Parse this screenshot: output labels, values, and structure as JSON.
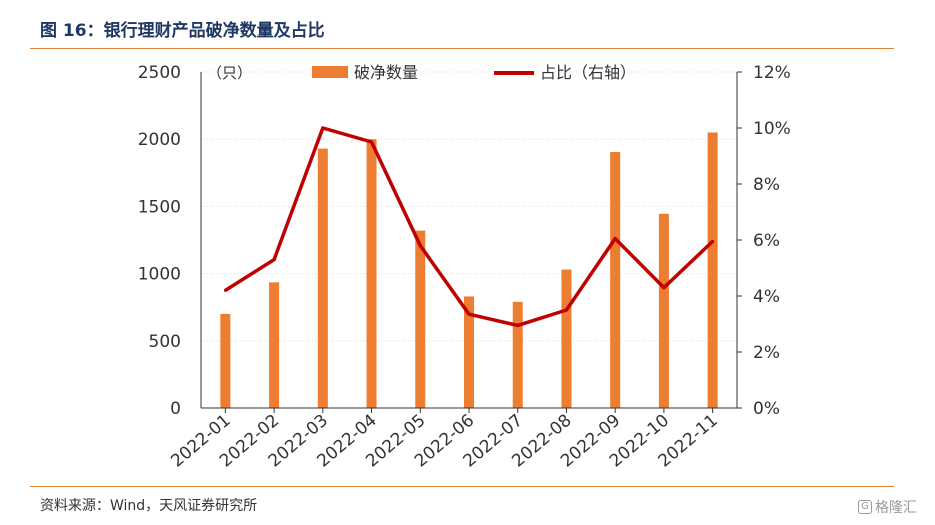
{
  "header": {
    "title": "图 16：银行理财产品破净数量及占比"
  },
  "footer": {
    "source": "资料来源：Wind，天风证券研究所",
    "watermark": "格隆汇"
  },
  "chart_data": {
    "type": "bar",
    "categories": [
      "2022-01",
      "2022-02",
      "2022-03",
      "2022-04",
      "2022-05",
      "2022-06",
      "2022-07",
      "2022-08",
      "2022-09",
      "2022-10",
      "2022-11"
    ],
    "series": [
      {
        "name": "破净数量",
        "type": "bar",
        "axis": "left",
        "color": "#ed7d31",
        "values": [
          700,
          935,
          1930,
          2000,
          1320,
          830,
          790,
          1030,
          1905,
          1445,
          2050
        ]
      },
      {
        "name": "占比（右轴）",
        "type": "line",
        "axis": "right",
        "color": "#c00000",
        "values": [
          4.2,
          5.3,
          10.0,
          9.5,
          5.8,
          3.35,
          2.95,
          3.5,
          6.05,
          4.3,
          5.95
        ]
      }
    ],
    "ylabel_unit": "（只）",
    "ylim": [
      0,
      2500
    ],
    "y_ticks": [
      "0",
      "500",
      "1000",
      "1500",
      "2000",
      "2500"
    ],
    "y2lim": [
      0,
      12
    ],
    "y2_ticks": [
      "0%",
      "2%",
      "4%",
      "6%",
      "8%",
      "10%",
      "12%"
    ],
    "legend_position": "top-center",
    "grid": true
  }
}
